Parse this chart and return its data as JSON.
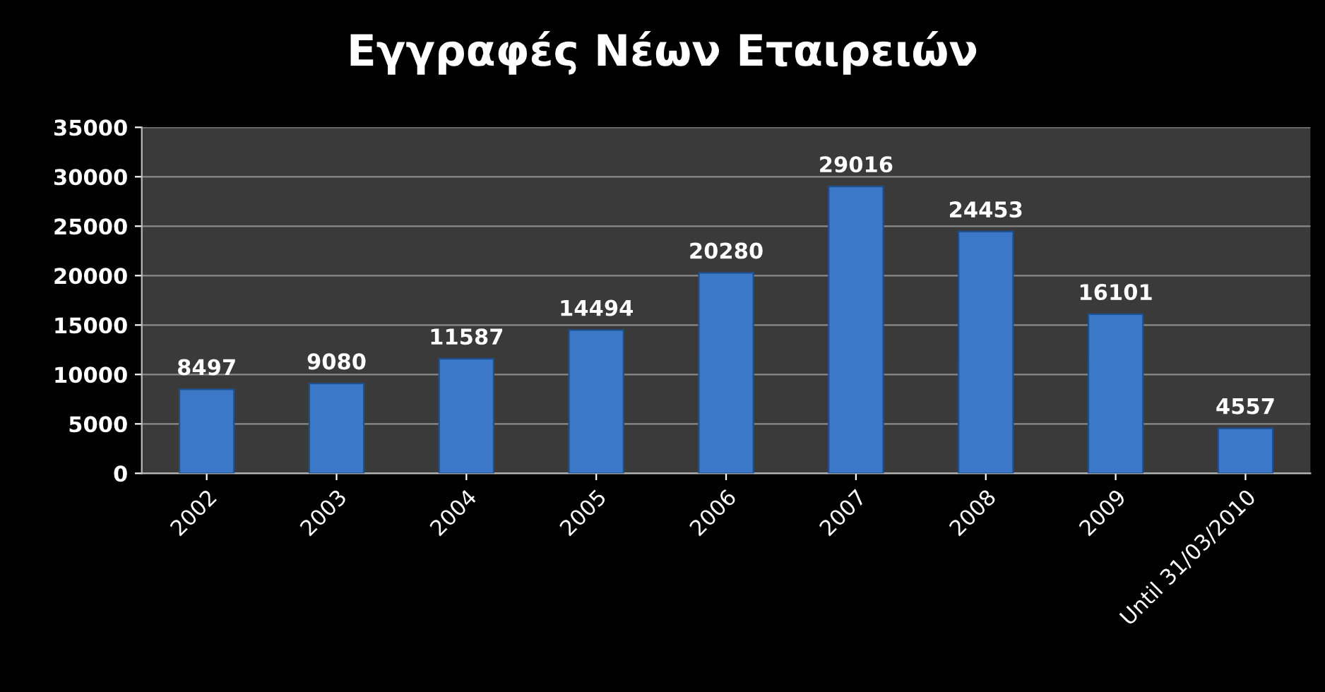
{
  "chart_data": {
    "type": "bar",
    "title": "Εγγραφές Νέων Εταιρειών",
    "categories": [
      "2002",
      "2003",
      "2004",
      "2005",
      "2006",
      "2007",
      "2008",
      "2009",
      "Until 31/03/2010"
    ],
    "values": [
      8497,
      9080,
      11587,
      14494,
      20280,
      29016,
      24453,
      16101,
      4557
    ],
    "color": "#3b78c8",
    "ylim": [
      0,
      35000
    ],
    "yticks": [
      0,
      5000,
      10000,
      15000,
      20000,
      25000,
      30000,
      35000
    ],
    "grid": "y",
    "data_labels": true,
    "legend": false
  }
}
